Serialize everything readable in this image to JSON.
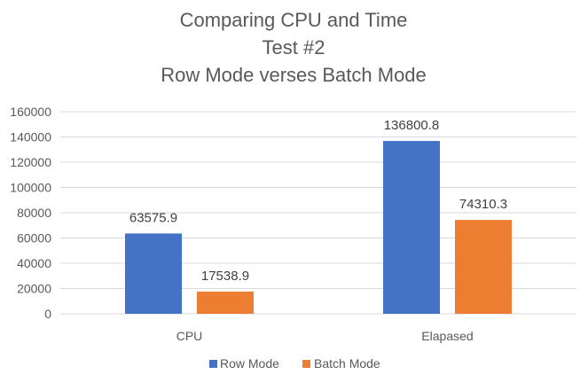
{
  "chart_data": {
    "type": "bar",
    "title": [
      "Comparing CPU and Time",
      "Test #2",
      "Row Mode verses Batch Mode"
    ],
    "categories": [
      "CPU",
      "Elapased"
    ],
    "series": [
      {
        "name": "Row Mode",
        "color": "#4472C4",
        "values": [
          63575.9,
          136800.8
        ],
        "labels": [
          "63575.9",
          "136800.8"
        ]
      },
      {
        "name": "Batch Mode",
        "color": "#ED7D31",
        "values": [
          17538.9,
          74310.3
        ],
        "labels": [
          "17538.9",
          "74310.3"
        ]
      }
    ],
    "ylim": [
      0,
      160000
    ],
    "yticks": [
      "0",
      "20000",
      "40000",
      "60000",
      "80000",
      "100000",
      "120000",
      "140000",
      "160000"
    ],
    "ytick_values": [
      0,
      20000,
      40000,
      60000,
      80000,
      100000,
      120000,
      140000,
      160000
    ],
    "grid": true,
    "legend": "bottom"
  }
}
